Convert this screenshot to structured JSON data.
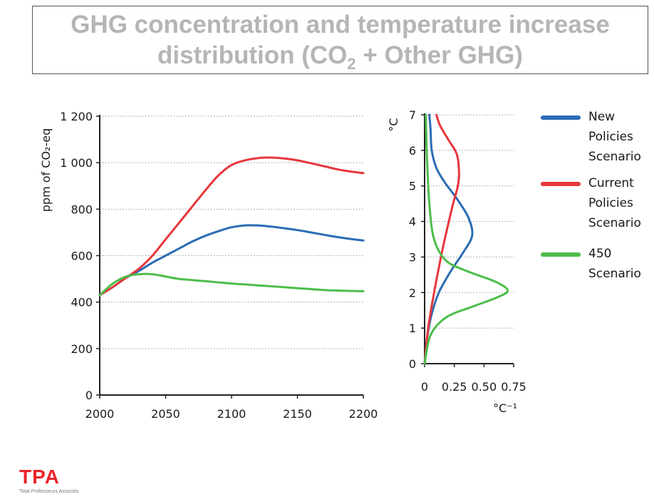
{
  "title": {
    "line1": "GHG concentration and temperature increase",
    "line2_prefix": "distribution (CO",
    "line2_sub": "2",
    "line2_suffix": " + Other GHG)"
  },
  "logo": {
    "text": "TPA",
    "subtitle": "Total Professeurs Associés"
  },
  "colors": {
    "new_policies": "#2b6cb4",
    "current_policies": "#e8363b",
    "scenario_450": "#4cbd4a"
  },
  "legend": [
    {
      "lines": [
        "New",
        "Policies",
        "Scenario"
      ],
      "color": "#2b6cb4"
    },
    {
      "lines": [
        "Current",
        "Policies",
        "Scenario"
      ],
      "color": "#e8363b"
    },
    {
      "lines": [
        "450",
        "Scenario"
      ],
      "color": "#4cbd4a"
    }
  ],
  "chart_data": [
    {
      "type": "line",
      "ylabel": "ppm of CO₂-eq",
      "xlabel": "",
      "xlim": [
        2000,
        2200
      ],
      "ylim": [
        0,
        1200
      ],
      "xticks": [
        "2000",
        "2050",
        "2100",
        "2150",
        "2200"
      ],
      "yticks": [
        "0",
        "200",
        "400",
        "600",
        "800",
        "1 000",
        "1 200"
      ],
      "grid": "horizontal dotted",
      "x": [
        2000,
        2010,
        2020,
        2030,
        2040,
        2050,
        2060,
        2070,
        2080,
        2090,
        2100,
        2110,
        2120,
        2130,
        2140,
        2150,
        2160,
        2170,
        2180,
        2190,
        2200
      ],
      "series": [
        {
          "name": "New Policies Scenario",
          "color": "#2b6cb4",
          "values": [
            430,
            465,
            505,
            535,
            570,
            600,
            630,
            660,
            685,
            705,
            722,
            730,
            730,
            725,
            718,
            710,
            700,
            690,
            680,
            672,
            665
          ]
        },
        {
          "name": "Current Policies Scenario",
          "color": "#e8363b",
          "values": [
            430,
            465,
            505,
            545,
            600,
            670,
            740,
            810,
            880,
            945,
            990,
            1010,
            1020,
            1022,
            1018,
            1010,
            998,
            985,
            972,
            962,
            955
          ]
        },
        {
          "name": "450 Scenario",
          "color": "#4cbd4a",
          "values": [
            430,
            480,
            510,
            520,
            520,
            510,
            500,
            495,
            490,
            485,
            480,
            476,
            472,
            468,
            464,
            460,
            456,
            452,
            450,
            448,
            447
          ]
        }
      ]
    },
    {
      "type": "line",
      "ylabel": "°C",
      "xlabel": "°C⁻¹",
      "xlim": [
        0,
        0.75
      ],
      "ylim": [
        0,
        7
      ],
      "xticks": [
        "0",
        "0.25",
        "0.50",
        "0.75"
      ],
      "yticks": [
        "0",
        "1",
        "2",
        "3",
        "4",
        "5",
        "6",
        "7"
      ],
      "grid": "horizontal dotted",
      "series": [
        {
          "name": "New Policies Scenario",
          "color": "#2b6cb4",
          "x": [
            0.0,
            0.02,
            0.06,
            0.12,
            0.22,
            0.32,
            0.4,
            0.37,
            0.28,
            0.17,
            0.1,
            0.06,
            0.05,
            0.04
          ],
          "y": [
            0.0,
            0.7,
            1.4,
            2.0,
            2.6,
            3.1,
            3.6,
            4.1,
            4.6,
            5.1,
            5.5,
            6.0,
            6.6,
            7.0
          ]
        },
        {
          "name": "Current Policies Scenario",
          "color": "#e8363b",
          "x": [
            0.0,
            0.03,
            0.08,
            0.12,
            0.15,
            0.19,
            0.24,
            0.28,
            0.29,
            0.27,
            0.2,
            0.13,
            0.1
          ],
          "y": [
            0.0,
            1.0,
            2.0,
            2.7,
            3.2,
            3.8,
            4.5,
            5.0,
            5.4,
            5.9,
            6.3,
            6.7,
            7.0
          ]
        },
        {
          "name": "450 Scenario",
          "color": "#4cbd4a",
          "x": [
            0.0,
            0.05,
            0.18,
            0.4,
            0.6,
            0.7,
            0.6,
            0.36,
            0.18,
            0.08,
            0.04,
            0.02,
            0.01
          ],
          "y": [
            0.0,
            0.8,
            1.3,
            1.6,
            1.85,
            2.05,
            2.3,
            2.6,
            2.9,
            3.5,
            4.5,
            5.8,
            7.0
          ]
        }
      ]
    }
  ]
}
